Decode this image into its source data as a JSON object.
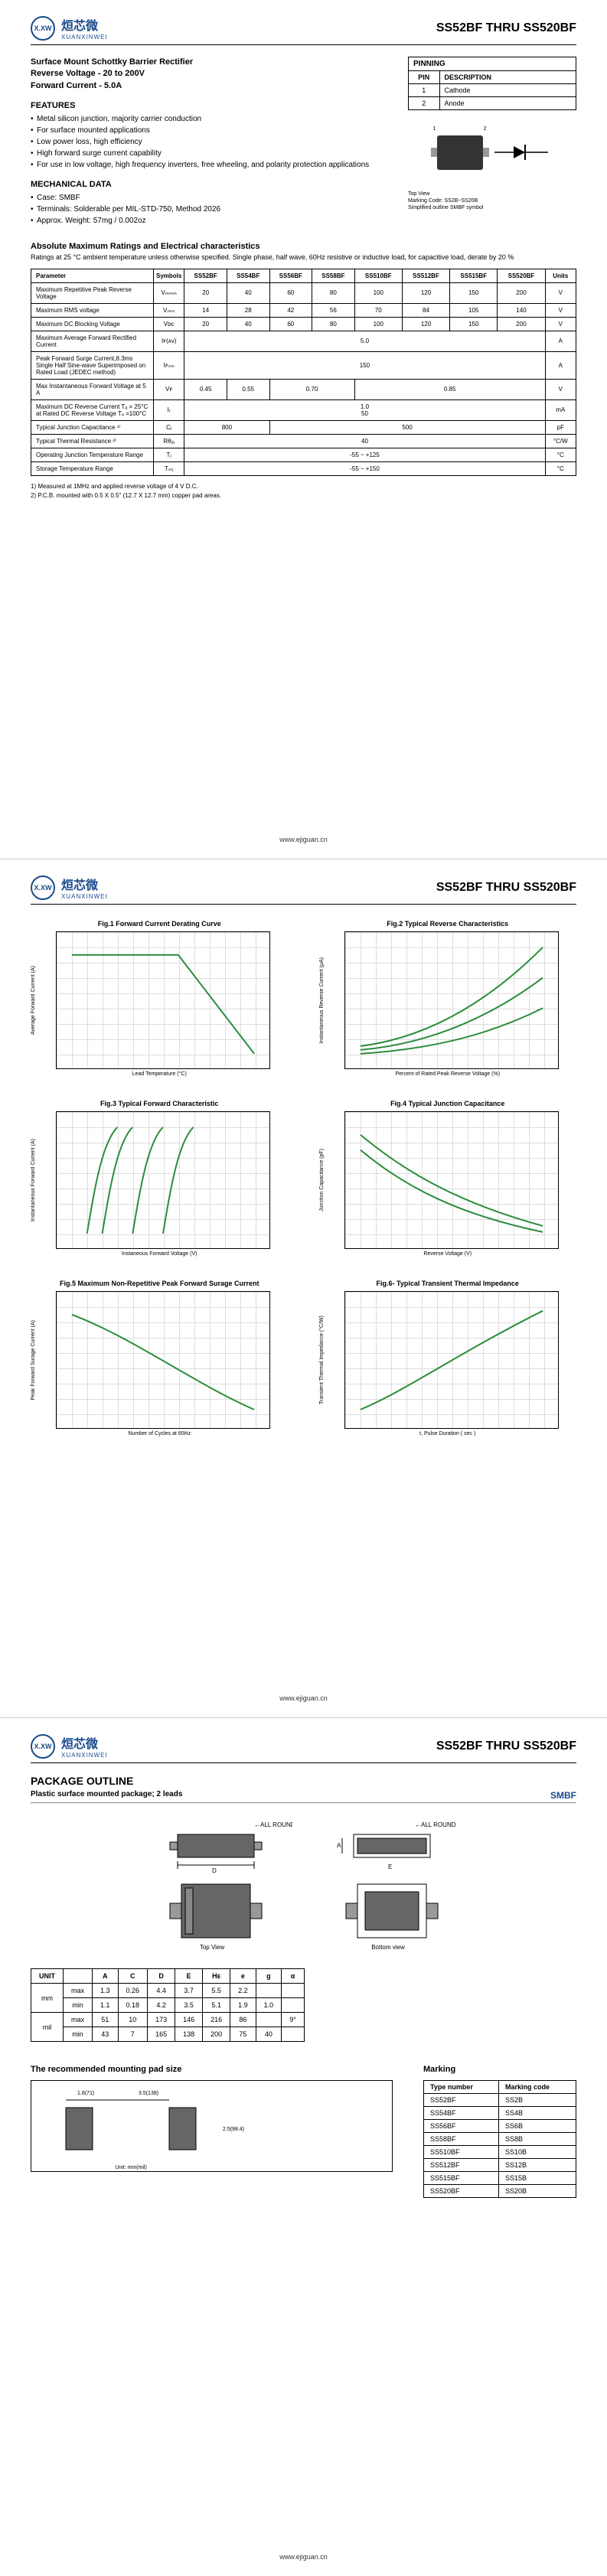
{
  "logo_cn": "烜芯微",
  "logo_en": "XUANXINWEI",
  "logo_mark": "X.XW",
  "part_range": "SS52BF  THRU  SS520BF",
  "subtitle_lines": [
    "Surface Mount Schottky Barrier Rectifier",
    "Reverse Voltage - 20 to 200V",
    "Forward Current - 5.0A"
  ],
  "features_h": "FEATURES",
  "features": [
    "Metal silicon junction, majority carrier conduction",
    "For surface mounted applications",
    "Low power loss, high efficiency",
    "High forward surge current capability",
    "For use in low voltage, high frequency inverters, free wheeling, and polarity protection applications"
  ],
  "mech_h": "MECHANICAL DATA",
  "mech": [
    "Case: SMBF",
    "Terminals: Solderable per MIL-STD-750, Method 2026",
    "Approx. Weight:  57mg / 0.002oz"
  ],
  "pinning_h": "PINNING",
  "pin_cols": [
    "PIN",
    "DESCRIPTION"
  ],
  "pin_rows": [
    [
      "1",
      "Cathode"
    ],
    [
      "2",
      "Anode"
    ]
  ],
  "pkg_caption": [
    "Top View",
    "Marking Code: SS2B~SS20B",
    "Simplified outline SMBF symbol"
  ],
  "ratings_h": "Absolute Maximum Ratings and Electrical characteristics",
  "ratings_note": "Ratings at 25 °C ambient temperature unless otherwise specified. Single phase, half wave, 60Hz resistive or inductive load, for capacitive load, derate by 20 %",
  "table_head": [
    "Parameter",
    "Symbols",
    "SS52BF",
    "SS54BF",
    "SS56BF",
    "SS58BF",
    "SS510BF",
    "SS512BF",
    "SS515BF",
    "SS520BF",
    "Units"
  ],
  "table_rows": [
    {
      "param": "Maximum Repetitive Peak Reverse Voltage",
      "sym": "Vₘₘₘ",
      "vals": [
        "20",
        "40",
        "60",
        "80",
        "100",
        "120",
        "150",
        "200"
      ],
      "unit": "V"
    },
    {
      "param": "Maximum RMS voltage",
      "sym": "Vᵣₘₛ",
      "vals": [
        "14",
        "28",
        "42",
        "56",
        "70",
        "84",
        "105",
        "140"
      ],
      "unit": "V"
    },
    {
      "param": "Maximum DC Blocking Voltage",
      "sym": "Vᴅᴄ",
      "vals": [
        "20",
        "40",
        "60",
        "80",
        "100",
        "120",
        "150",
        "200"
      ],
      "unit": "V"
    },
    {
      "param": "Maximum Average Forward Rectified Current",
      "sym": "Iꜰ(ᴀᴠ)",
      "span": "5.0",
      "unit": "A"
    },
    {
      "param": "Peak Forward Surge Current,8.3ms Single Half Sine-wave Superimposed on Rated Load (JEDEC method)",
      "sym": "Iꜰₛₘ",
      "span": "150",
      "unit": "A"
    },
    {
      "param": "Max Instantaneous Forward Voltage at 5 A",
      "sym": "Vꜰ",
      "vals_custom": [
        [
          "0.45",
          1
        ],
        [
          "0.55",
          1
        ],
        [
          "0.70",
          2
        ],
        [
          "0.85",
          4
        ]
      ],
      "unit": "V"
    },
    {
      "param": "Maximum DC Reverse Current    Tₐ = 25°C\nat Rated DC Reverse Voltage     Tₐ =100°C",
      "sym": "Iᵣ",
      "span2": [
        "1.0",
        "50"
      ],
      "unit": "mA"
    },
    {
      "param": "Typical Junction Capacitance ¹⁾",
      "sym": "Cⱼ",
      "vals_custom": [
        [
          "800",
          2
        ],
        [
          "500",
          6
        ]
      ],
      "unit": "pF"
    },
    {
      "param": "Typical Thermal Resistance ²⁾",
      "sym": "Rθⱼₐ",
      "span": "40",
      "unit": "°C/W"
    },
    {
      "param": "Operating Junction Temperature Range",
      "sym": "Tⱼ",
      "span": "-55 ~ +125",
      "unit": "°C"
    },
    {
      "param": "Storage Temperature Range",
      "sym": "Tₛₜⱼ",
      "span": "-55 ~ +150",
      "unit": "°C"
    }
  ],
  "footnotes": [
    "1)  Measured at 1MHz and applied reverse voltage of 4 V D.C.",
    "2)  P.C.B. mounted with 0.5 X 0.5\" (12.7 X 12.7 mm) copper pad areas."
  ],
  "footer_url": "www.ejiguan.cn",
  "charts": [
    {
      "title": "Fig.1  Forward Current Derating Curve",
      "xlabel": "Lead Temperature (°C)",
      "ylabel": "Average Forward Current (A)",
      "curve_color": "#2a8c3a"
    },
    {
      "title": "Fig.2  Typical Reverse Characteristics",
      "xlabel": "Percent of Rated Peak Reverse Voltage (%)",
      "ylabel": "Instantaneous Reverse Current (μA)",
      "curve_color": "#2a8c3a"
    },
    {
      "title": "Fig.3  Typical Forward Characteristic",
      "xlabel": "Instaneous Forward Voltage (V)",
      "ylabel": "Instantaneous Forward Current (A)",
      "curve_color": "#2a8c3a"
    },
    {
      "title": "Fig.4  Typical Junction Capacitance",
      "xlabel": "Reverse Voltage (V)",
      "ylabel": "Junction Capacitance (pF)",
      "curve_color": "#2a8c3a"
    },
    {
      "title": "Fig.5  Maximum Non-Repetitive Peak Forward Surage Current",
      "xlabel": "Number of Cycles at 60Hz",
      "ylabel": "Peak Forward Surage Current (A)",
      "curve_color": "#2a8c3a"
    },
    {
      "title": "Fig.6- Typical Transient Thermal Impedance",
      "xlabel": "t, Pulse Duration ( sec )",
      "ylabel": "Transient Thermal Impedance (°C/W)",
      "curve_color": "#2a8c3a"
    }
  ],
  "pkg_outline_h": "PACKAGE  OUTLINE",
  "pkg_sub": "Plastic surface mounted package; 2 leads",
  "smbf": "SMBF",
  "view_labels": [
    "Top View",
    "Bottom view"
  ],
  "dim_head": [
    "UNIT",
    "",
    "A",
    "C",
    "D",
    "E",
    "Hᴇ",
    "e",
    "g",
    "α"
  ],
  "dim_rows": [
    [
      "mm",
      "max",
      "1.3",
      "0.26",
      "4.4",
      "3.7",
      "5.5",
      "2.2",
      "",
      ""
    ],
    [
      "",
      "min",
      "1.1",
      "0.18",
      "4.2",
      "3.5",
      "5.1",
      "1.9",
      "1.0",
      ""
    ],
    [
      "mil",
      "max",
      "51",
      "10",
      "173",
      "146",
      "216",
      "86",
      "",
      "9°"
    ],
    [
      "",
      "min",
      "43",
      "7",
      "165",
      "138",
      "200",
      "75",
      "40",
      ""
    ]
  ],
  "mounting_h": "The recommended mounting pad size",
  "marking_h": "Marking",
  "marking_head": [
    "Type number",
    "Marking code"
  ],
  "marking_rows": [
    [
      "SS52BF",
      "SS2B"
    ],
    [
      "SS54BF",
      "SS4B"
    ],
    [
      "SS56BF",
      "SS6B"
    ],
    [
      "SS58BF",
      "SS8B"
    ],
    [
      "SS510BF",
      "SS10B"
    ],
    [
      "SS512BF",
      "SS12B"
    ],
    [
      "SS515BF",
      "SS15B"
    ],
    [
      "SS520BF",
      "SS20B"
    ]
  ],
  "all_round": "ALL ROUND",
  "dim_letters": [
    "A",
    "C",
    "D",
    "E",
    "Hᴇ"
  ]
}
